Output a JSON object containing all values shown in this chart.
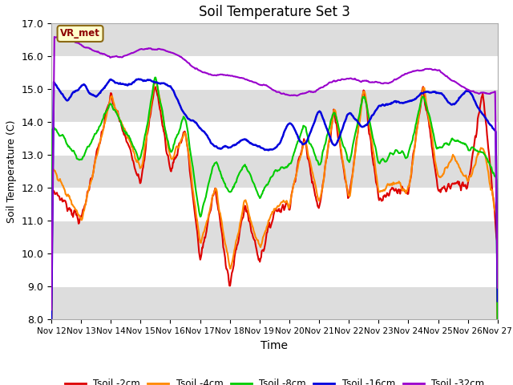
{
  "title": "Soil Temperature Set 3",
  "xlabel": "Time",
  "ylabel": "Soil Temperature (C)",
  "ylim": [
    8.0,
    17.0
  ],
  "yticks": [
    8.0,
    9.0,
    10.0,
    11.0,
    12.0,
    13.0,
    14.0,
    15.0,
    16.0,
    17.0
  ],
  "xlim_days": [
    0,
    15
  ],
  "xtick_labels": [
    "Nov 12",
    "Nov 13",
    "Nov 14",
    "Nov 15",
    "Nov 16",
    "Nov 17",
    "Nov 18",
    "Nov 19",
    "Nov 20",
    "Nov 21",
    "Nov 22",
    "Nov 23",
    "Nov 24",
    "Nov 25",
    "Nov 26",
    "Nov 27"
  ],
  "xtick_positions": [
    0,
    1,
    2,
    3,
    4,
    5,
    6,
    7,
    8,
    9,
    10,
    11,
    12,
    13,
    14,
    15
  ],
  "series_colors": [
    "#dd0000",
    "#ff8800",
    "#00cc00",
    "#0000dd",
    "#9900cc"
  ],
  "series_labels": [
    "Tsoil -2cm",
    "Tsoil -4cm",
    "Tsoil -8cm",
    "Tsoil -16cm",
    "Tsoil -32cm"
  ],
  "series_linewidths": [
    1.5,
    1.5,
    1.5,
    1.8,
    1.5
  ],
  "bg_color": "#ffffff",
  "plot_bg_color": "#e8e8e8",
  "white_band_color": "#ffffff",
  "gray_band_color": "#dddddd",
  "vr_met_label": "VR_met",
  "vr_met_color": "#8b0000",
  "vr_met_bg": "#ffffcc",
  "n_points": 720,
  "legend_ncol": 5
}
